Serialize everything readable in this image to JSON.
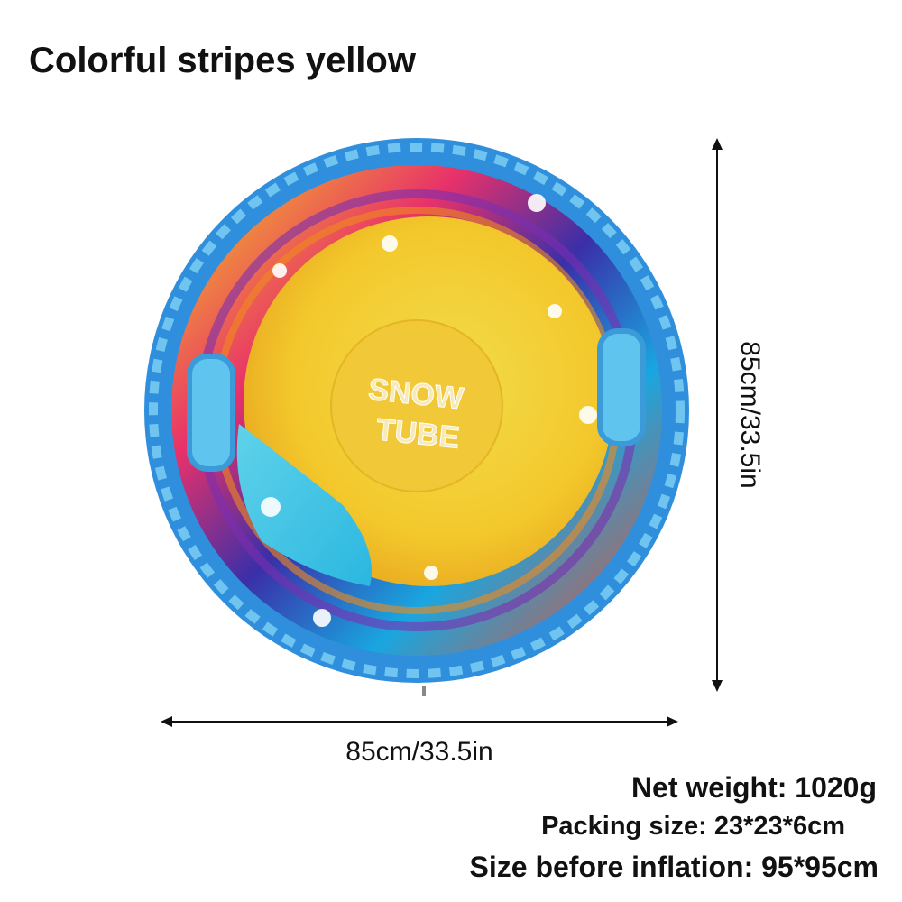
{
  "header": {
    "title": "Colorful stripes yellow"
  },
  "product": {
    "label_line1": "SNOW",
    "label_line2": "TUBE"
  },
  "dimensions": {
    "width": "85cm/33.5in",
    "height": "85cm/33.5in"
  },
  "specs": [
    "Net weight: 1020g",
    "Packing size: 23*23*6cm",
    "Size before inflation: 95*95cm"
  ]
}
